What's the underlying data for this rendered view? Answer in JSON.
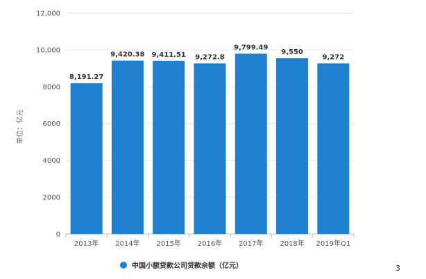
{
  "chart_data": {
    "type": "bar",
    "categories": [
      "2013年",
      "2014年",
      "2015年",
      "2016年",
      "2017年",
      "2018年",
      "2019年Q1"
    ],
    "series": [
      {
        "name": "中国小额贷款公司贷款余额（亿元）",
        "values": [
          8191.27,
          9420.38,
          9411.51,
          9272.8,
          9799.49,
          9550,
          9272
        ],
        "data_labels": [
          "8,191.27",
          "9,420.38",
          "9,411.51",
          "9,272.8",
          "9,799.49",
          "9,550",
          "9,272"
        ]
      }
    ],
    "ylabel": "单位：亿元",
    "ylim": [
      0,
      12000
    ],
    "yticks": [
      0,
      2000,
      4000,
      6000,
      8000,
      10000,
      12000
    ],
    "ytick_labels": [
      "0",
      "2000",
      "4000",
      "6000",
      "8000",
      "10,000",
      "12,000"
    ],
    "grid": true,
    "legend_position": "bottom-left",
    "bar_color": "#1f7fd0"
  },
  "page_number": "3"
}
